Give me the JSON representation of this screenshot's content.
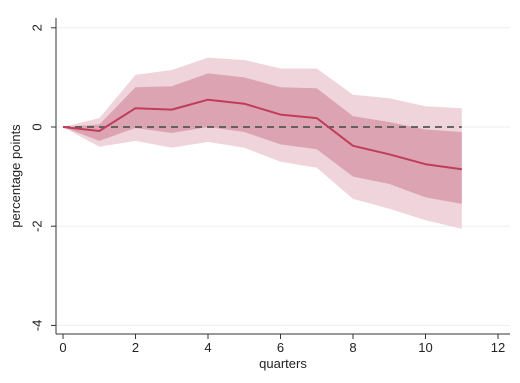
{
  "chart_data": {
    "type": "line",
    "title": "",
    "xlabel": "quarters",
    "ylabel": "percentage points",
    "xlim": [
      0,
      12
    ],
    "ylim": [
      -4,
      2
    ],
    "x_ticks": [
      0,
      2,
      4,
      6,
      8,
      10,
      12
    ],
    "y_ticks": [
      2,
      0,
      -2,
      -4
    ],
    "grid": "horizontal",
    "x": [
      0,
      1,
      2,
      3,
      4,
      5,
      6,
      7,
      8,
      9,
      10,
      11
    ],
    "series": [
      {
        "values": [
          0,
          -0.08,
          0.38,
          0.35,
          0.55,
          0.47,
          0.25,
          0.18,
          -0.38,
          -0.55,
          -0.75,
          -0.85
        ]
      }
    ],
    "bands": [
      {
        "lower": [
          0,
          -0.4,
          -0.28,
          -0.42,
          -0.3,
          -0.42,
          -0.7,
          -0.82,
          -1.45,
          -1.65,
          -1.88,
          -2.05
        ],
        "upper": [
          0,
          0.18,
          1.05,
          1.15,
          1.4,
          1.35,
          1.18,
          1.18,
          0.65,
          0.58,
          0.42,
          0.38
        ]
      },
      {
        "lower": [
          0,
          -0.28,
          -0.02,
          -0.12,
          0.0,
          -0.1,
          -0.35,
          -0.45,
          -1.0,
          -1.15,
          -1.42,
          -1.55
        ],
        "upper": [
          0,
          0.05,
          0.8,
          0.82,
          1.08,
          1.0,
          0.8,
          0.78,
          0.22,
          0.1,
          -0.05,
          -0.1
        ]
      }
    ],
    "reference_line": {
      "y": 0,
      "style": "dashed"
    },
    "colors": {
      "outer_band": "#efd4dc",
      "inner_band": "#dca4b3",
      "line": "#c13c59",
      "reference": "#555555",
      "grid": "#eeeeee",
      "axis": "#333333"
    }
  }
}
